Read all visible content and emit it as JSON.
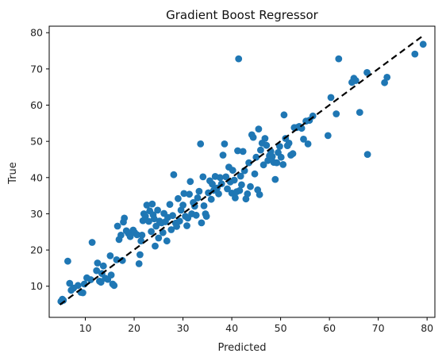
{
  "chart_data": {
    "type": "scatter",
    "title": "Gradient Boost Regressor",
    "xlabel": "Predicted",
    "ylabel": "True",
    "xlim": [
      2.6,
      81.6
    ],
    "ylim": [
      1.4,
      81.8
    ],
    "xticks": [
      10,
      20,
      30,
      40,
      50,
      60,
      70,
      80
    ],
    "yticks": [
      10,
      20,
      30,
      40,
      50,
      60,
      70,
      80
    ],
    "grid": false,
    "point_color": "#1f77b4",
    "reference_line": {
      "style": "dashed",
      "color": "#000000",
      "from": [
        4.8,
        4.9
      ],
      "to": [
        79.2,
        79.2
      ]
    },
    "points": [
      [
        5.0,
        5.8
      ],
      [
        5.3,
        6.4
      ],
      [
        5.5,
        6.1
      ],
      [
        6.4,
        16.9
      ],
      [
        6.8,
        10.8
      ],
      [
        7.1,
        8.9
      ],
      [
        7.6,
        9.5
      ],
      [
        8.5,
        10.2
      ],
      [
        9.1,
        8.3
      ],
      [
        9.5,
        8.2
      ],
      [
        9.8,
        10.6
      ],
      [
        10.3,
        12.3
      ],
      [
        11.1,
        11.8
      ],
      [
        11.4,
        22.1
      ],
      [
        12.3,
        14.3
      ],
      [
        12.5,
        16.4
      ],
      [
        12.9,
        11.4
      ],
      [
        13.2,
        11.1
      ],
      [
        13.4,
        13.5
      ],
      [
        13.7,
        15.6
      ],
      [
        14.1,
        12.2
      ],
      [
        14.6,
        11.9
      ],
      [
        15.1,
        18.4
      ],
      [
        15.3,
        13.1
      ],
      [
        15.6,
        10.6
      ],
      [
        15.9,
        10.2
      ],
      [
        16.4,
        17.3
      ],
      [
        16.6,
        26.6
      ],
      [
        16.9,
        22.9
      ],
      [
        17.3,
        24.1
      ],
      [
        17.6,
        17.1
      ],
      [
        17.8,
        27.7
      ],
      [
        18.0,
        28.8
      ],
      [
        18.4,
        25.3
      ],
      [
        18.8,
        24.6
      ],
      [
        19.2,
        23.7
      ],
      [
        19.8,
        25.5
      ],
      [
        20.1,
        24.8
      ],
      [
        20.6,
        24.2
      ],
      [
        21.0,
        16.2
      ],
      [
        21.2,
        18.7
      ],
      [
        21.4,
        22.5
      ],
      [
        21.6,
        24.1
      ],
      [
        21.8,
        28.1
      ],
      [
        22.0,
        30.0
      ],
      [
        22.3,
        29.3
      ],
      [
        22.6,
        32.4
      ],
      [
        23.0,
        27.9
      ],
      [
        23.2,
        30.8
      ],
      [
        23.5,
        25.1
      ],
      [
        23.7,
        32.7
      ],
      [
        23.9,
        29.7
      ],
      [
        24.1,
        28.6
      ],
      [
        24.3,
        21.1
      ],
      [
        24.5,
        26.6
      ],
      [
        24.8,
        31.0
      ],
      [
        25.0,
        23.3
      ],
      [
        25.2,
        28.0
      ],
      [
        25.6,
        27.5
      ],
      [
        25.9,
        24.8
      ],
      [
        26.1,
        30.1
      ],
      [
        26.4,
        27.8
      ],
      [
        26.7,
        22.5
      ],
      [
        26.9,
        29.0
      ],
      [
        27.3,
        32.6
      ],
      [
        27.6,
        25.6
      ],
      [
        27.9,
        29.5
      ],
      [
        28.1,
        40.8
      ],
      [
        28.5,
        27.4
      ],
      [
        28.7,
        26.5
      ],
      [
        29.0,
        34.2
      ],
      [
        29.3,
        28.0
      ],
      [
        29.6,
        31.0
      ],
      [
        30.0,
        32.4
      ],
      [
        30.2,
        35.6
      ],
      [
        30.5,
        29.3
      ],
      [
        30.8,
        26.7
      ],
      [
        31.0,
        28.8
      ],
      [
        31.3,
        35.4
      ],
      [
        31.5,
        38.9
      ],
      [
        31.8,
        30.0
      ],
      [
        32.1,
        33.1
      ],
      [
        32.4,
        32.1
      ],
      [
        32.7,
        29.6
      ],
      [
        33.0,
        34.4
      ],
      [
        33.3,
        36.2
      ],
      [
        33.6,
        49.3
      ],
      [
        33.8,
        27.5
      ],
      [
        34.1,
        40.2
      ],
      [
        34.3,
        32.2
      ],
      [
        34.6,
        30.0
      ],
      [
        34.8,
        29.3
      ],
      [
        35.2,
        35.8
      ],
      [
        35.5,
        39.1
      ],
      [
        35.8,
        34.0
      ],
      [
        36.0,
        38.2
      ],
      [
        36.3,
        36.5
      ],
      [
        36.6,
        40.3
      ],
      [
        37.0,
        37.1
      ],
      [
        37.3,
        35.5
      ],
      [
        37.6,
        40.0
      ],
      [
        37.9,
        38.3
      ],
      [
        38.2,
        46.2
      ],
      [
        38.5,
        49.3
      ],
      [
        38.8,
        40.2
      ],
      [
        39.1,
        36.9
      ],
      [
        39.4,
        42.9
      ],
      [
        39.7,
        38.8
      ],
      [
        40.0,
        35.7
      ],
      [
        40.2,
        42.0
      ],
      [
        40.5,
        39.3
      ],
      [
        40.7,
        34.4
      ],
      [
        41.0,
        36.1
      ],
      [
        41.2,
        47.4
      ],
      [
        41.4,
        72.8
      ],
      [
        41.6,
        36.4
      ],
      [
        41.8,
        40.4
      ],
      [
        42.0,
        38.0
      ],
      [
        42.3,
        47.2
      ],
      [
        42.6,
        41.9
      ],
      [
        42.9,
        34.1
      ],
      [
        43.2,
        35.5
      ],
      [
        43.5,
        44.1
      ],
      [
        43.8,
        37.5
      ],
      [
        44.1,
        51.8
      ],
      [
        44.4,
        51.1
      ],
      [
        44.7,
        41.0
      ],
      [
        45.0,
        45.6
      ],
      [
        45.3,
        36.6
      ],
      [
        45.5,
        53.4
      ],
      [
        45.7,
        35.3
      ],
      [
        45.9,
        47.6
      ],
      [
        46.2,
        49.5
      ],
      [
        46.5,
        43.5
      ],
      [
        46.8,
        50.8
      ],
      [
        47.1,
        48.9
      ],
      [
        47.4,
        44.7
      ],
      [
        47.7,
        46.0
      ],
      [
        48.0,
        47.2
      ],
      [
        48.3,
        45.8
      ],
      [
        48.6,
        44.2
      ],
      [
        48.9,
        39.5
      ],
      [
        49.2,
        44.1
      ],
      [
        49.5,
        46.9
      ],
      [
        49.8,
        48.6
      ],
      [
        50.1,
        45.6
      ],
      [
        50.5,
        43.6
      ],
      [
        50.7,
        57.3
      ],
      [
        51.0,
        50.8
      ],
      [
        51.4,
        48.8
      ],
      [
        51.7,
        49.5
      ],
      [
        52.1,
        46.2
      ],
      [
        52.5,
        46.6
      ],
      [
        52.8,
        53.8
      ],
      [
        53.3,
        53.8
      ],
      [
        53.8,
        54.1
      ],
      [
        54.3,
        53.6
      ],
      [
        54.7,
        50.6
      ],
      [
        55.2,
        55.6
      ],
      [
        55.6,
        49.3
      ],
      [
        55.9,
        55.8
      ],
      [
        56.6,
        57.0
      ],
      [
        59.7,
        51.6
      ],
      [
        60.3,
        62.1
      ],
      [
        61.4,
        57.6
      ],
      [
        61.9,
        72.8
      ],
      [
        64.6,
        66.3
      ],
      [
        65.0,
        67.4
      ],
      [
        65.4,
        66.8
      ],
      [
        66.2,
        58.0
      ],
      [
        67.7,
        69.0
      ],
      [
        67.8,
        46.4
      ],
      [
        71.3,
        66.2
      ],
      [
        71.8,
        67.7
      ],
      [
        77.5,
        74.1
      ],
      [
        79.2,
        76.8
      ]
    ]
  }
}
